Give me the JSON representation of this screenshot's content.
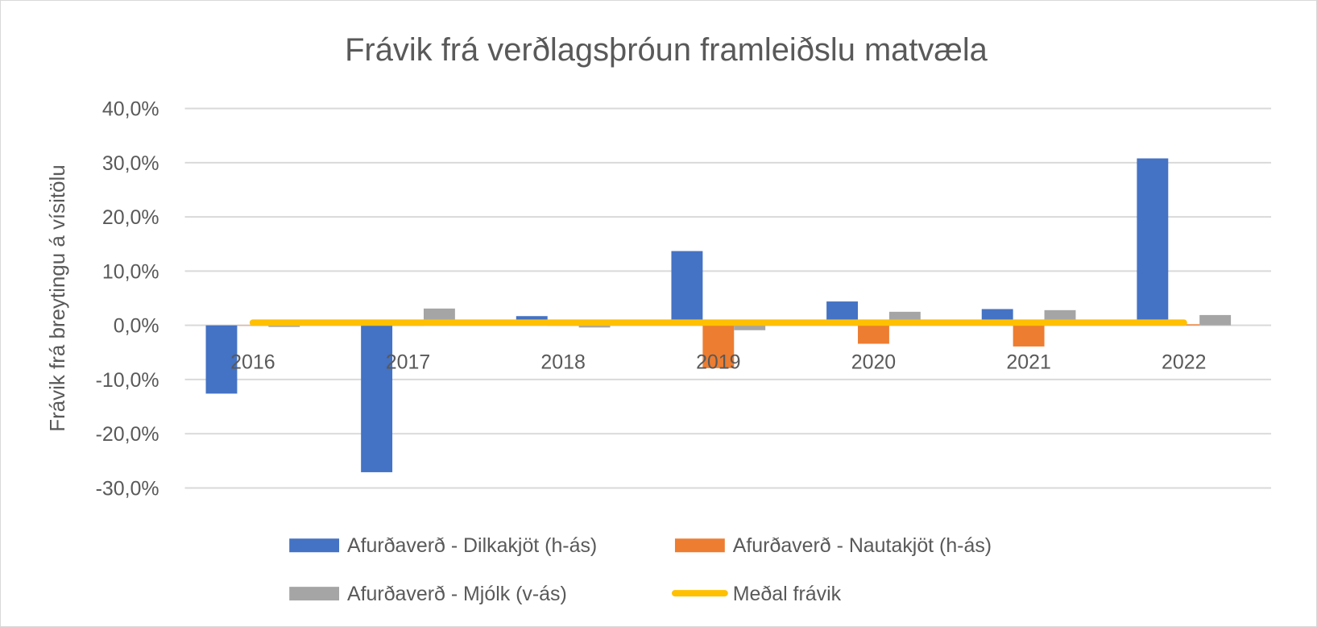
{
  "chart_data": {
    "type": "bar",
    "title": "Frávik frá verðlagsþróun framleiðslu matvæla",
    "xlabel": "",
    "ylabel": "Frávik frá breytingu á vísitölu",
    "categories": [
      "2016",
      "2017",
      "2018",
      "2019",
      "2020",
      "2021",
      "2022"
    ],
    "ylim": [
      -30,
      40
    ],
    "yticks": [
      40,
      30,
      20,
      10,
      0,
      -10,
      -20,
      -30
    ],
    "ytick_labels": [
      "40,0%",
      "30,0%",
      "20,0%",
      "10,0%",
      "0,0%",
      "-10,0%",
      "-20,0%",
      "-30,0%"
    ],
    "grid": true,
    "legend_position": "bottom",
    "series": [
      {
        "name": "Afurðaverð - Dilkakjöt (h-ás)",
        "type": "bar",
        "color": "#4472c4",
        "values": [
          -12.6,
          -27.1,
          1.7,
          13.7,
          4.4,
          3.0,
          30.8
        ]
      },
      {
        "name": "Afurðaverð - Nautakjöt (h-ás)",
        "type": "bar",
        "color": "#ed7d31",
        "values": [
          0.0,
          0.0,
          0.0,
          -7.9,
          -3.4,
          -3.9,
          0.2
        ]
      },
      {
        "name": "Afurðaverð - Mjólk (v-ás)",
        "type": "bar",
        "color": "#a5a5a5",
        "values": [
          -0.3,
          3.1,
          -0.4,
          -0.9,
          2.5,
          2.8,
          1.9
        ]
      },
      {
        "name": "Meðal frávik",
        "type": "line",
        "color": "#ffc000",
        "values": [
          0.5,
          0.5,
          0.5,
          0.5,
          0.5,
          0.5,
          0.5
        ]
      }
    ]
  }
}
